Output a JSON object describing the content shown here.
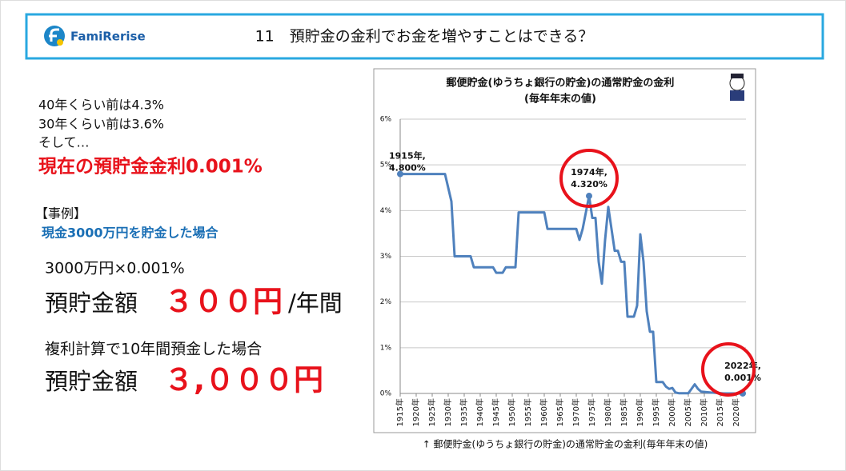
{
  "header": {
    "logo": "FamiRerise",
    "title": "11　預貯金の金利でお金を増やすことはできる？"
  },
  "left": {
    "lines": [
      "40年くらい前は4.3%",
      "30年くらい前は3.6%",
      "そして…"
    ],
    "highlight": "現在の預貯金金利0.001%",
    "case_label": "【事例】",
    "case": "現金3000万円を貯金した場合",
    "calc1": "3000万円×0.001%",
    "amount1_label": "預貯金額",
    "amount1_value": "３００円",
    "amount1_unit": "/年間",
    "calc2": "複利計算で10年間預金した場合",
    "amount2_label": "預貯金額",
    "amount2_value": "３,０００円"
  },
  "chart_data": {
    "type": "line",
    "title": "郵便貯金(ゆうちょ銀行の貯金)の通常貯金の金利",
    "subtitle": "(毎年年末の値)",
    "x": [
      1915,
      1929,
      1931,
      1932,
      1937,
      1938,
      1944,
      1945,
      1947,
      1948,
      1951,
      1952,
      1960,
      1961,
      1970,
      1971,
      1972,
      1974,
      1975,
      1976,
      1977,
      1978,
      1979,
      1980,
      1981,
      1982,
      1983,
      1984,
      1985,
      1986,
      1988,
      1989,
      1990,
      1991,
      1992,
      1993,
      1994,
      1995,
      1997,
      1998,
      1999,
      2000,
      2001,
      2002,
      2005,
      2006,
      2007,
      2008,
      2009,
      2012,
      2016,
      2022
    ],
    "series": [
      {
        "color": "#4f81bd",
        "values": [
          4.8,
          4.8,
          4.2,
          3.0,
          3.0,
          2.76,
          2.76,
          2.64,
          2.64,
          2.76,
          2.76,
          3.96,
          3.96,
          3.6,
          3.6,
          3.36,
          3.6,
          4.32,
          3.84,
          3.84,
          2.88,
          2.4,
          3.36,
          4.08,
          3.6,
          3.12,
          3.12,
          2.88,
          2.88,
          1.68,
          1.68,
          1.92,
          3.48,
          2.88,
          1.8,
          1.35,
          1.35,
          0.25,
          0.25,
          0.15,
          0.1,
          0.12,
          0.02,
          0.005,
          0.005,
          0.1,
          0.2,
          0.1,
          0.04,
          0.02,
          0.001,
          0.001
        ]
      }
    ],
    "xlim": [
      1915,
      2023
    ],
    "ylim": [
      0,
      6
    ],
    "xticks": [
      {
        "value": 1915,
        "label": "1915年"
      },
      {
        "value": 1920,
        "label": "1920年"
      },
      {
        "value": 1925,
        "label": "1925年"
      },
      {
        "value": 1930,
        "label": "1930年"
      },
      {
        "value": 1935,
        "label": "1935年"
      },
      {
        "value": 1940,
        "label": "1940年"
      },
      {
        "value": 1945,
        "label": "1945年"
      },
      {
        "value": 1950,
        "label": "1950年"
      },
      {
        "value": 1955,
        "label": "1955年"
      },
      {
        "value": 1960,
        "label": "1960年"
      },
      {
        "value": 1965,
        "label": "1965年"
      },
      {
        "value": 1970,
        "label": "1970年"
      },
      {
        "value": 1975,
        "label": "1975年"
      },
      {
        "value": 1980,
        "label": "1980年"
      },
      {
        "value": 1985,
        "label": "1985年"
      },
      {
        "value": 1990,
        "label": "1990年"
      },
      {
        "value": 1995,
        "label": "1995年"
      },
      {
        "value": 2000,
        "label": "2000年"
      },
      {
        "value": 2005,
        "label": "2005年"
      },
      {
        "value": 2010,
        "label": "2010年"
      },
      {
        "value": 2015,
        "label": "2015年"
      },
      {
        "value": 2020,
        "label": "2020年"
      }
    ],
    "yticks": [
      {
        "value": 0,
        "label": "0%"
      },
      {
        "value": 1,
        "label": "1%"
      },
      {
        "value": 2,
        "label": "2%"
      },
      {
        "value": 3,
        "label": "3%"
      },
      {
        "value": 4,
        "label": "4%"
      },
      {
        "value": 5,
        "label": "5%"
      },
      {
        "value": 6,
        "label": "6%"
      }
    ],
    "grid": true,
    "annotations": [
      {
        "x": 1915,
        "y": 4.8,
        "label": [
          "1915年,",
          "4.800%"
        ]
      },
      {
        "x": 1974,
        "y": 4.32,
        "label": [
          "1974年,",
          "4.320%"
        ]
      },
      {
        "x": 2022,
        "y": 0.001,
        "label": [
          "2022年,",
          "0.001%"
        ]
      }
    ],
    "caption": "↑ 郵便貯金(ゆうちょ銀行の貯金)の通常貯金の金利(毎年年末の値)"
  }
}
